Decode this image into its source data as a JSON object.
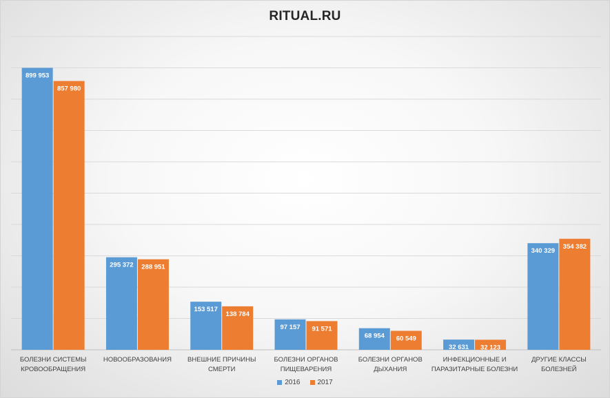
{
  "chart_data": {
    "type": "bar",
    "title": "RITUAL.RU",
    "categories": [
      [
        "БОЛЕЗНИ СИСТЕМЫ",
        "КРОВООБРАЩЕНИЯ"
      ],
      [
        "НОВООБРАЗОВАНИЯ"
      ],
      [
        "ВНЕШНИЕ ПРИЧИНЫ",
        "СМЕРТИ"
      ],
      [
        "БОЛЕЗНИ ОРГАНОВ",
        "ПИЩЕВАРЕНИЯ"
      ],
      [
        "БОЛЕЗНИ ОРГАНОВ",
        "ДЫХАНИЯ"
      ],
      [
        "ИНФЕКЦИОННЫЕ И",
        "ПАРАЗИТАРНЫЕ БОЛЕЗНИ"
      ],
      [
        "ДРУГИЕ КЛАССЫ",
        "БОЛЕЗНЕЙ"
      ]
    ],
    "series": [
      {
        "name": "2016",
        "color": "#5b9bd5",
        "values": [
          899953,
          295372,
          153517,
          97157,
          68954,
          32631,
          340329
        ],
        "labels": [
          "899 953",
          "295 372",
          "153 517",
          "97 157",
          "68 954",
          "32 631",
          "340 329"
        ]
      },
      {
        "name": "2017",
        "color": "#ed7d31",
        "values": [
          857980,
          288951,
          138784,
          91571,
          60549,
          32123,
          354382
        ],
        "labels": [
          "857 980",
          "288 951",
          "138 784",
          "91 571",
          "60 549",
          "32 123",
          "354 382"
        ]
      }
    ],
    "ylim": [
      0,
      1000000
    ],
    "grid": true,
    "legend_position": "bottom"
  }
}
